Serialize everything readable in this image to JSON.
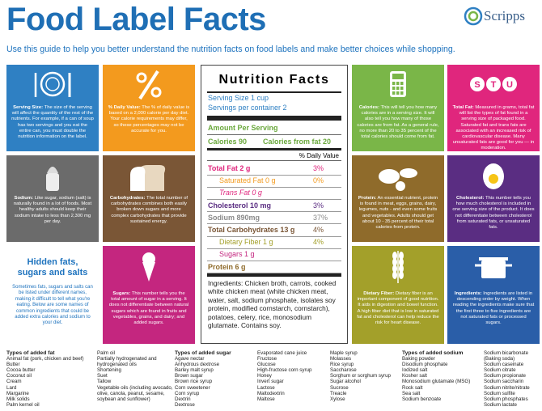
{
  "header": {
    "title": "Food Label Facts",
    "logo": "Scripps",
    "subtitle": "Use this guide to help you better understand the nutrition facts on food labels and make better choices while shopping."
  },
  "tiles": [
    {
      "label": "Serving Size:",
      "text": "The size of the serving will affect the quantity of the rest of the nutrients. For example, if a can of soup has two servings and you eat the entire can, you must double the nutrition information on the label."
    },
    {
      "label": "% Daily Value:",
      "text": "The % of daily value is based on a 2,000 calorie per day diet. Your calorie requirements may differ, so these percentages may not be accurate for you."
    },
    {
      "label": "Sodium:",
      "text": "Like sugar, sodium (salt) is naturally found in a lot of foods. Most healthy adults should keep their sodium intake to less than 2,300 mg per day."
    },
    {
      "label": "Carbohydrates:",
      "text": "The total number of carbohydrates combines both easily broken down sugars and more complex carbohydrates that provide sustained energy."
    },
    {
      "label": "Hidden fats, sugars and salts",
      "text": "Sometimes fats, sugars and salts can be listed under different names, making it difficult to tell what you're eating. Below are some names of common ingredients that could be added extra calories and sodium to your diet."
    },
    {
      "label": "Sugars:",
      "text": "This number tells you the total amount of sugar in a serving. It does not differentiate between natural sugars which are found in fruits and vegetables, grains, and dairy; and added sugars."
    },
    {
      "label": "Calories:",
      "text": "This will tell you how many calories are in a serving size. It will also tell you how many of those calories are from fat. As a general rule, no more than 20 to 35 percent of the total calories should come from fat."
    },
    {
      "label": "Total Fat:",
      "text": "Measured in grams, total fat will list the types of fat found in a serving size of packaged food. Saturated fat and trans fats are associated with an increased risk of cardiovascular disease. Many unsaturated fats are good for you — in moderation.",
      "badge": [
        "S",
        "T",
        "U"
      ]
    },
    {
      "label": "Protein:",
      "text": "An essential nutrient, protein is found in meat, eggs, grains, dairy, legumes, nuts - and even some fruits and vegetables. Adults should get about 10 - 35 percent of their total calories from protein."
    },
    {
      "label": "Cholesterol:",
      "text": "This number tells you how much cholesterol is included in one serving size of the product. It does not differentiate between cholesterol from saturated fats, or unsaturated fats."
    },
    {
      "label": "Dietary Fiber:",
      "text": "Dietary fiber is an important component of good nutrition. It aids in digestion and bowel function. A high fiber diet that is low in saturated fat and cholesterol can help reduce the risk for heart disease."
    },
    {
      "label": "Ingredients:",
      "text": "Ingredients are listed in descending order by weight. When reading the ingredients make sure that the first three to five ingredients are not saturated fats or processed sugars."
    }
  ],
  "label": {
    "title": "Nutrition Facts",
    "serving_size": "Serving Size 1 cup",
    "servings": "Servings per container 2",
    "amount": "Amount Per Serving",
    "calories": "Calories 90",
    "calories_fat": "Calories from fat 20",
    "dv_heading": "% Daily Value",
    "rows": [
      {
        "text": "Total Fat 2 g",
        "dv": "3%"
      },
      {
        "text": "Saturated Fat 0 g",
        "dv": "0%"
      },
      {
        "text": "Trans Fat 0 g"
      },
      {
        "text": "Cholesterol 10 mg",
        "dv": "3%"
      },
      {
        "text": "Sodium 890mg",
        "dv": "37%"
      },
      {
        "text": "Total Carbohydrates 13 g",
        "dv": "4%"
      },
      {
        "text": "Dietary Fiber 1 g",
        "dv": "4%"
      },
      {
        "text": "Sugars 1 g"
      },
      {
        "text": "Protein 6 g"
      }
    ],
    "ingredients": "Ingredients: Chicken broth, carrots, cooked white chicken meat (white chicken meat, water, salt, sodium phosphate, isolates soy protein, modified cornstarch, cornstarch), potatoes, celery, rice, monosodium glutamate. Contains soy."
  },
  "lists": [
    {
      "heading": "Types of added fat",
      "items": [
        "Animal fat (pork, chicken and beef)",
        "Butter",
        "Cocoa butter",
        "Coconut oil",
        "Cream",
        "Lard",
        "Margarine",
        "Milk solids",
        "Palm kernel oil"
      ]
    },
    {
      "items": [
        "Palm oil",
        "Partially hydrogenated and hydrogenated oils",
        "Shortening",
        "Suet",
        "Tallow",
        "Vegetable oils (including avocado, olive, canola, peanut, sesame, soybean and sunflower)"
      ]
    },
    {
      "heading": "Types of added sugar",
      "items": [
        "Agave nectar",
        "Anhydrous dextrose",
        "Barley malt syrup",
        "Brown sugar",
        "Brown rice syrup",
        "Corn sweetener",
        "Corn syrup",
        "Dextrin",
        "Dextrose"
      ]
    },
    {
      "items": [
        "Evaporated cane juice",
        "Fructose",
        "Glucose",
        "High-fructose corn syrup",
        "Honey",
        "Invert sugar",
        "Lactose",
        "Maltodextrin",
        "Maltose"
      ]
    },
    {
      "items": [
        "Maple syrup",
        "Molasses",
        "Rice syrup",
        "Saccharose",
        "Sorghum or sorghum syrup",
        "Sugar alcohol",
        "Sucrose",
        "Treacle",
        "Xylose"
      ]
    },
    {
      "heading": "Types of added sodium",
      "items": [
        "Baking powder",
        "Disodium phosphate",
        "Iodized salt",
        "Kosher salt",
        "Monosodium glutamate (MSG)",
        "Rock salt",
        "Sea salt",
        "Sodium benzoate"
      ]
    },
    {
      "items": [
        "Sodium bicarbonate (Baking soda)",
        "Sodium caseinate",
        "Sodium citrate",
        "Sodium propionate",
        "Sodium saccharin",
        "Sodium nitrite/nitrate",
        "Sodium sulfite",
        "Sodium phosphates",
        "Sodium lactate"
      ]
    }
  ]
}
